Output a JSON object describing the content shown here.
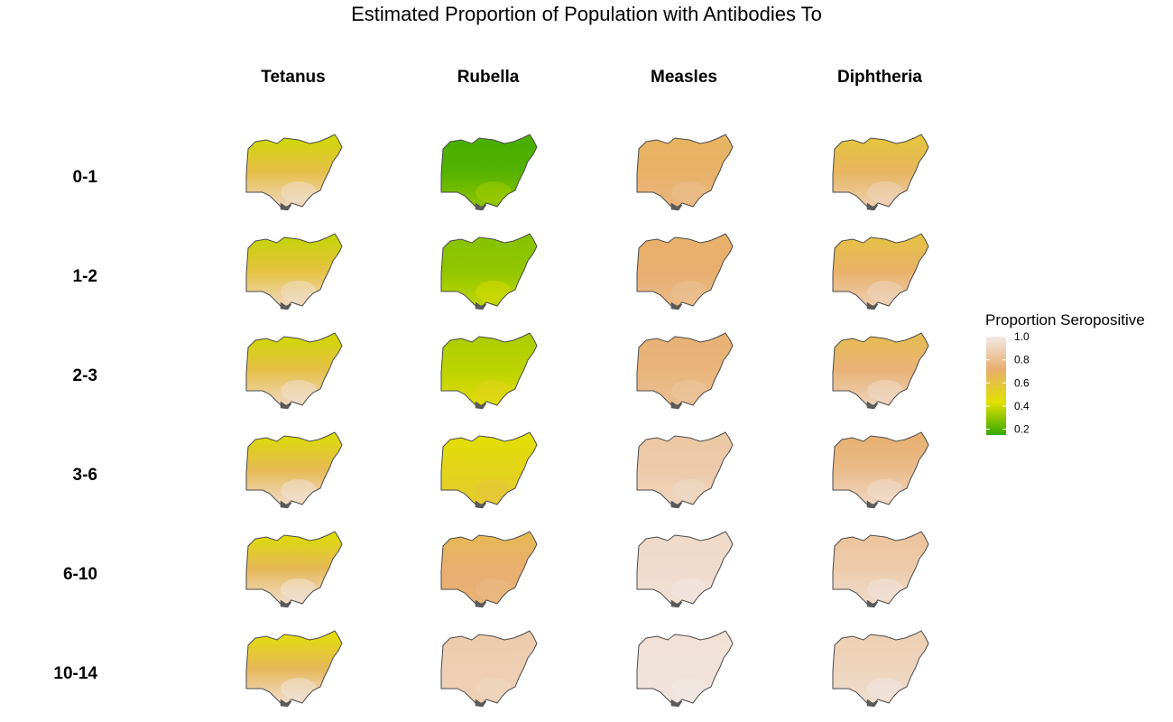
{
  "chart_data": {
    "type": "heatmap",
    "title": "Estimated Proportion of Population with Antibodies To",
    "columns": [
      "Tetanus",
      "Rubella",
      "Measles",
      "Diphtheria"
    ],
    "rows": [
      "0-1",
      "1-2",
      "2-3",
      "3-6",
      "6-10",
      "10-14"
    ],
    "legend": {
      "title": "Proportion Seropositive",
      "ticks": [
        "1.0",
        "0.8",
        "0.6",
        "0.4",
        "0.2"
      ],
      "tick_values": [
        1.0,
        0.8,
        0.6,
        0.4,
        0.2
      ],
      "range": [
        0.15,
        1.0
      ],
      "placement": "right",
      "colors": [
        "#36a800",
        "#e2e100",
        "#e8ae6e",
        "#f2e8e6"
      ]
    },
    "values": [
      [
        0.62,
        0.2,
        0.7,
        0.68
      ],
      [
        0.6,
        0.3,
        0.72,
        0.7
      ],
      [
        0.62,
        0.37,
        0.75,
        0.74
      ],
      [
        0.65,
        0.5,
        0.86,
        0.78
      ],
      [
        0.66,
        0.72,
        0.94,
        0.86
      ],
      [
        0.66,
        0.88,
        0.97,
        0.9
      ]
    ],
    "north_values": [
      [
        0.4,
        0.18,
        0.68,
        0.58
      ],
      [
        0.38,
        0.28,
        0.7,
        0.6
      ],
      [
        0.4,
        0.34,
        0.73,
        0.64
      ],
      [
        0.42,
        0.44,
        0.84,
        0.72
      ],
      [
        0.42,
        0.65,
        0.93,
        0.82
      ],
      [
        0.44,
        0.86,
        0.96,
        0.88
      ]
    ],
    "south_values": [
      [
        0.92,
        0.3,
        0.76,
        0.88
      ],
      [
        0.92,
        0.38,
        0.78,
        0.88
      ],
      [
        0.93,
        0.46,
        0.8,
        0.9
      ],
      [
        0.94,
        0.56,
        0.9,
        0.92
      ],
      [
        0.95,
        0.74,
        0.96,
        0.94
      ],
      [
        0.95,
        0.88,
        0.98,
        0.95
      ]
    ]
  }
}
